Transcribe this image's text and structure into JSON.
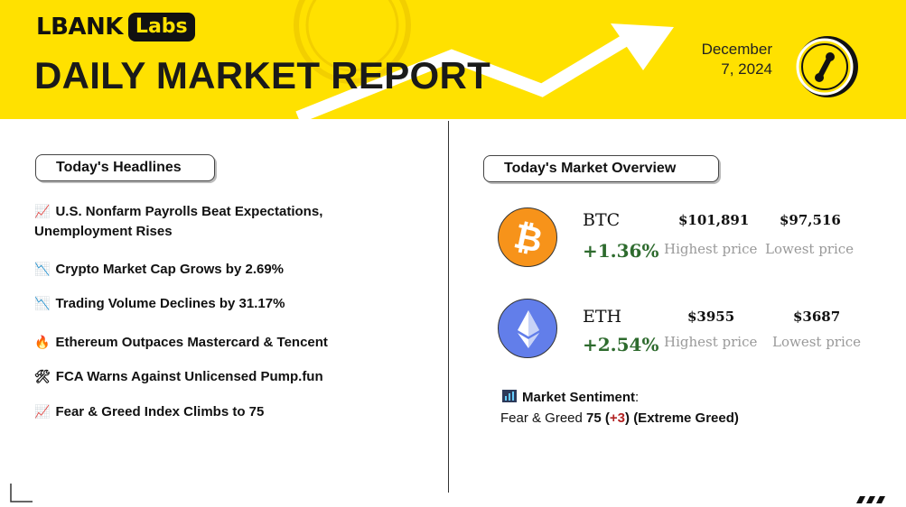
{
  "header": {
    "logo_text": "LBANK",
    "logo_badge": "Labs",
    "title": "DAILY MARKET REPORT",
    "date_line1": "December",
    "date_line2": "7, 2024"
  },
  "headlines": {
    "heading": "Today's Headlines",
    "items": [
      {
        "icon": "chart-up-icon",
        "glyph": "📈",
        "text": "U.S. Nonfarm Payrolls Beat Expectations,",
        "text2": "Unemployment Rises"
      },
      {
        "icon": "chart-down-icon",
        "glyph": "📉",
        "text": "Crypto Market Cap Grows by 2.69%"
      },
      {
        "icon": "chart-down-icon",
        "glyph": "📉",
        "text": "Trading Volume Declines by 31.17%"
      },
      {
        "icon": "fire-icon",
        "glyph": "🔥",
        "text": "Ethereum Outpaces Mastercard & Tencent"
      },
      {
        "icon": "tools-icon",
        "glyph": "🛠",
        "text": "FCA Warns Against Unlicensed Pump.fun"
      },
      {
        "icon": "chart-up-icon",
        "glyph": "📈",
        "text": "Fear & Greed Index Climbs to 75"
      }
    ]
  },
  "market": {
    "heading": "Today's Market Overview",
    "coins": [
      {
        "symbol": "BTC",
        "change": "+1.36%",
        "high": "$101,891",
        "low": "$97,516",
        "high_label": "Highest price",
        "low_label": "Lowest price",
        "color": "#f7931a",
        "icon": "bitcoin-icon"
      },
      {
        "symbol": "ETH",
        "change": "+2.54%",
        "high": "$3955",
        "low": "$3687",
        "high_label": "Highest price",
        "low_label": "Lowest price",
        "color": "#627eea",
        "icon": "ethereum-icon"
      }
    ]
  },
  "sentiment": {
    "icon": "bar-chart-icon",
    "title": "Market Sentiment",
    "label": "Fear & Greed",
    "value": "75",
    "delta": "+3",
    "state": "(Extreme Greed)"
  },
  "colors": {
    "brand_yellow": "#ffe100",
    "positive_green": "#2e6b2e",
    "delta_red": "#b22222"
  }
}
